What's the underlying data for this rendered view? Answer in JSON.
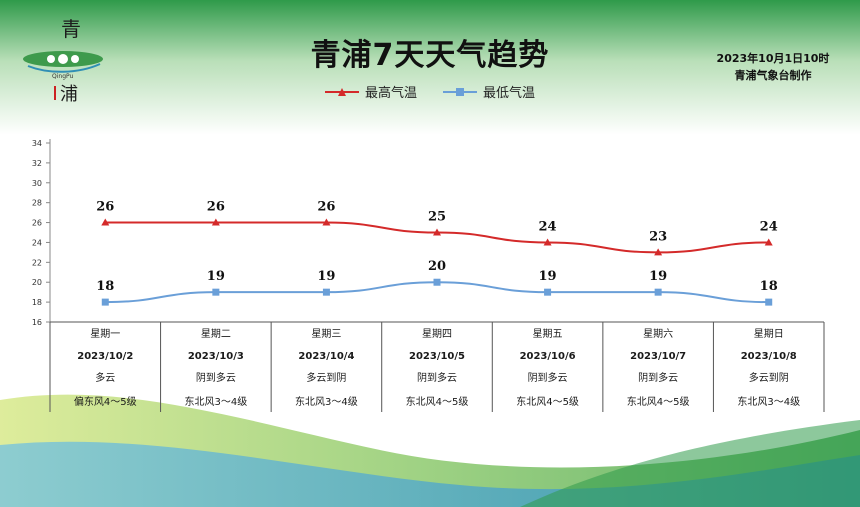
{
  "header": {
    "title": "青浦7天天气趋势",
    "date": "2023年10月1日10时",
    "publisher": "青浦气象台制作"
  },
  "logo": {
    "top_char": "青",
    "bottom_char": "浦",
    "sub": "QingPu"
  },
  "colors": {
    "high": "#d42a2a",
    "low": "#6a9fd8",
    "header_green": "#2f9a4a"
  },
  "chart_data": {
    "type": "line",
    "title": "青浦7天天气趋势",
    "categories": [
      "星期一",
      "星期二",
      "星期三",
      "星期四",
      "星期五",
      "星期六",
      "星期日"
    ],
    "series": [
      {
        "name": "最高气温",
        "values": [
          26,
          26,
          26,
          25,
          24,
          23,
          24
        ],
        "color": "#d42a2a",
        "marker": "triangle"
      },
      {
        "name": "最低气温",
        "values": [
          18,
          19,
          19,
          20,
          19,
          19,
          18
        ],
        "color": "#6a9fd8",
        "marker": "square"
      }
    ],
    "ylim": [
      16,
      34
    ],
    "yticks": [
      16,
      18,
      20,
      22,
      24,
      26,
      28,
      30,
      32,
      34
    ],
    "legend": "top-center",
    "grid": false
  },
  "days": [
    {
      "weekday": "星期一",
      "date": "2023/10/2",
      "weather": "多云",
      "wind": "偏东风4～5级"
    },
    {
      "weekday": "星期二",
      "date": "2023/10/3",
      "weather": "阴到多云",
      "wind": "东北风3～4级"
    },
    {
      "weekday": "星期三",
      "date": "2023/10/4",
      "weather": "多云到阴",
      "wind": "东北风3～4级"
    },
    {
      "weekday": "星期四",
      "date": "2023/10/5",
      "weather": "阴到多云",
      "wind": "东北风4～5级"
    },
    {
      "weekday": "星期五",
      "date": "2023/10/6",
      "weather": "阴到多云",
      "wind": "东北风4～5级"
    },
    {
      "weekday": "星期六",
      "date": "2023/10/7",
      "weather": "阴到多云",
      "wind": "东北风4～5级"
    },
    {
      "weekday": "星期日",
      "date": "2023/10/8",
      "weather": "多云到阴",
      "wind": "东北风3～4级"
    }
  ]
}
